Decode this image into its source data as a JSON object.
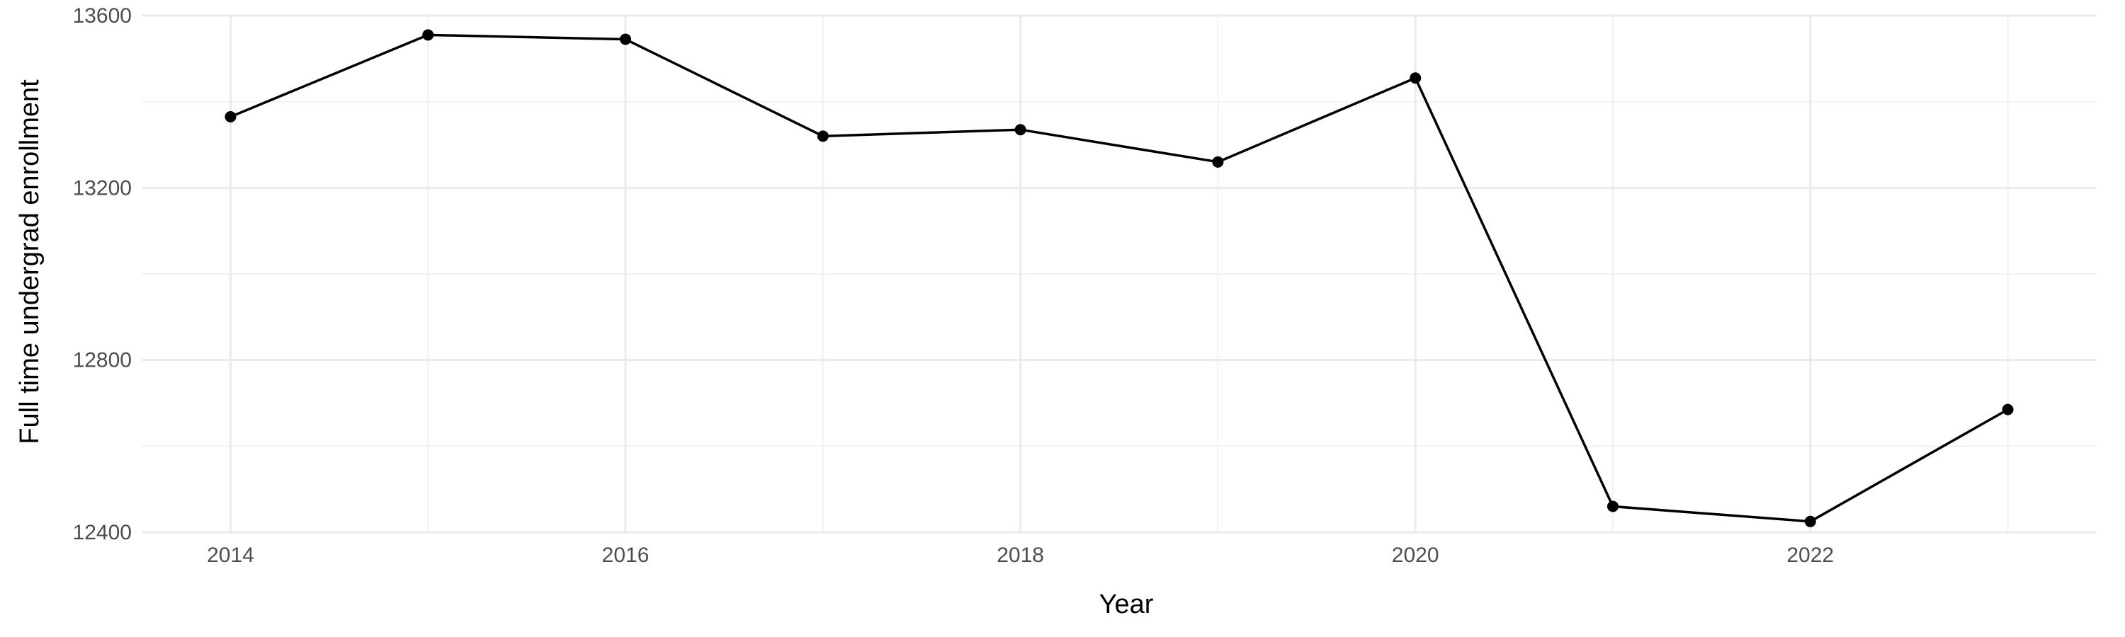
{
  "chart_data": {
    "type": "line",
    "title": "",
    "xlabel": "Year",
    "ylabel": "Full time undergrad enrollment",
    "x": [
      2014,
      2015,
      2016,
      2017,
      2018,
      2019,
      2020,
      2021,
      2022,
      2023
    ],
    "series": [
      {
        "values": [
          13365,
          13555,
          13545,
          13320,
          13335,
          13260,
          13455,
          12460,
          12425,
          12685
        ]
      }
    ],
    "xlim": [
      2013.55,
      2023.45
    ],
    "ylim": [
      12400,
      13600
    ],
    "x_ticks": [
      "2014",
      "2016",
      "2018",
      "2020",
      "2022"
    ],
    "y_ticks": [
      "12400",
      "12800",
      "13200",
      "13600"
    ],
    "grid": true,
    "legend": "none",
    "line_color": "#000000",
    "grid_color": "#ebebeb"
  }
}
